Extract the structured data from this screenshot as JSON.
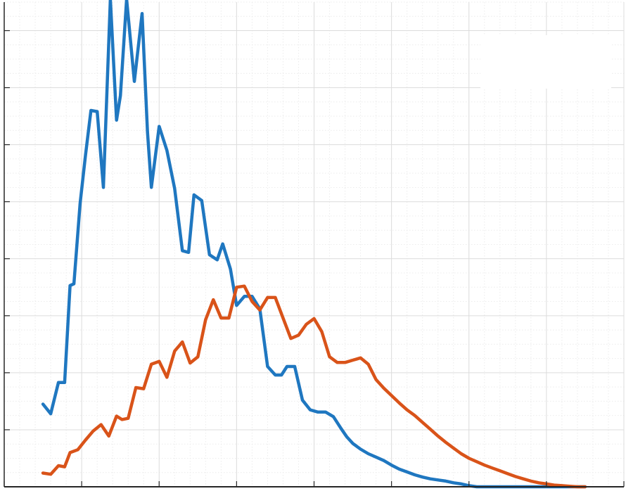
{
  "chart_data": {
    "type": "line",
    "title": "",
    "xlabel": "",
    "ylabel": "",
    "grid": true,
    "minor_grid": true,
    "tick_labels_visible": false,
    "xlim": [
      0,
      8
    ],
    "ylim": [
      0,
      8.5
    ],
    "colors": {
      "axes": "#262626",
      "grid": "#dcdcdc",
      "minor_grid": "#ececec",
      "legend_box": "#ffffff"
    },
    "legend": {
      "placement": "top-right",
      "entries": []
    },
    "series": [
      {
        "color": "#1f77c0",
        "x": [
          0.5,
          0.6,
          0.7,
          0.78,
          0.85,
          0.9,
          0.98,
          1.05,
          1.12,
          1.2,
          1.28,
          1.37,
          1.45,
          1.5,
          1.58,
          1.68,
          1.78,
          1.85,
          1.9,
          2.0,
          2.1,
          2.2,
          2.3,
          2.38,
          2.45,
          2.55,
          2.65,
          2.75,
          2.82,
          2.92,
          3.0,
          3.1,
          3.2,
          3.3,
          3.4,
          3.5,
          3.58,
          3.65,
          3.75,
          3.85,
          3.95,
          4.05,
          4.15,
          4.25,
          4.35,
          4.42,
          4.5,
          4.6,
          4.7,
          4.8,
          4.9,
          5.0,
          5.1,
          5.2,
          5.3,
          5.4,
          5.5,
          5.6,
          5.7,
          5.8,
          5.9,
          6.0,
          6.1,
          6.2,
          6.3,
          6.4,
          6.5,
          6.6,
          6.7,
          6.8,
          6.9,
          7.0,
          7.1,
          7.2,
          7.3,
          7.4,
          7.5
        ],
        "values": [
          1.45,
          1.28,
          1.83,
          1.83,
          3.53,
          3.56,
          4.97,
          5.82,
          6.6,
          6.58,
          5.25,
          8.55,
          6.43,
          6.86,
          8.55,
          7.11,
          8.3,
          6.22,
          5.25,
          6.32,
          5.9,
          5.23,
          4.14,
          4.11,
          5.12,
          5.02,
          4.07,
          3.98,
          4.26,
          3.82,
          3.18,
          3.34,
          3.34,
          3.12,
          2.11,
          1.96,
          1.96,
          2.11,
          2.11,
          1.52,
          1.35,
          1.31,
          1.31,
          1.23,
          1.02,
          0.88,
          0.76,
          0.66,
          0.58,
          0.52,
          0.46,
          0.38,
          0.31,
          0.26,
          0.21,
          0.17,
          0.14,
          0.12,
          0.1,
          0.07,
          0.05,
          0.02,
          0.0,
          0.0,
          0.0,
          0.0,
          0.0,
          0.0,
          0.0,
          0.0,
          0.0,
          0.0,
          0.0,
          0.0,
          0.0,
          0.0,
          0.0
        ]
      },
      {
        "color": "#d95319",
        "x": [
          0.5,
          0.6,
          0.7,
          0.78,
          0.85,
          0.95,
          1.05,
          1.15,
          1.25,
          1.35,
          1.45,
          1.52,
          1.6,
          1.7,
          1.8,
          1.9,
          2.0,
          2.1,
          2.2,
          2.3,
          2.4,
          2.5,
          2.6,
          2.7,
          2.8,
          2.9,
          3.0,
          3.1,
          3.2,
          3.3,
          3.4,
          3.5,
          3.6,
          3.7,
          3.8,
          3.9,
          4.0,
          4.1,
          4.2,
          4.3,
          4.4,
          4.5,
          4.6,
          4.7,
          4.8,
          4.9,
          5.0,
          5.1,
          5.2,
          5.3,
          5.4,
          5.5,
          5.6,
          5.7,
          5.8,
          5.9,
          6.0,
          6.1,
          6.2,
          6.3,
          6.4,
          6.5,
          6.6,
          6.7,
          6.8,
          6.9,
          7.0,
          7.1,
          7.2,
          7.3,
          7.4,
          7.5
        ],
        "values": [
          0.24,
          0.22,
          0.37,
          0.35,
          0.6,
          0.65,
          0.82,
          0.98,
          1.09,
          0.89,
          1.24,
          1.18,
          1.2,
          1.74,
          1.72,
          2.15,
          2.2,
          1.92,
          2.38,
          2.54,
          2.17,
          2.28,
          2.93,
          3.28,
          2.96,
          2.96,
          3.5,
          3.52,
          3.25,
          3.1,
          3.32,
          3.32,
          2.96,
          2.6,
          2.66,
          2.85,
          2.95,
          2.72,
          2.28,
          2.18,
          2.18,
          2.22,
          2.26,
          2.15,
          1.88,
          1.73,
          1.6,
          1.47,
          1.35,
          1.25,
          1.13,
          1.01,
          0.89,
          0.78,
          0.68,
          0.58,
          0.5,
          0.44,
          0.38,
          0.33,
          0.28,
          0.23,
          0.18,
          0.14,
          0.1,
          0.07,
          0.05,
          0.03,
          0.02,
          0.01,
          0.0,
          0.0
        ]
      }
    ]
  }
}
